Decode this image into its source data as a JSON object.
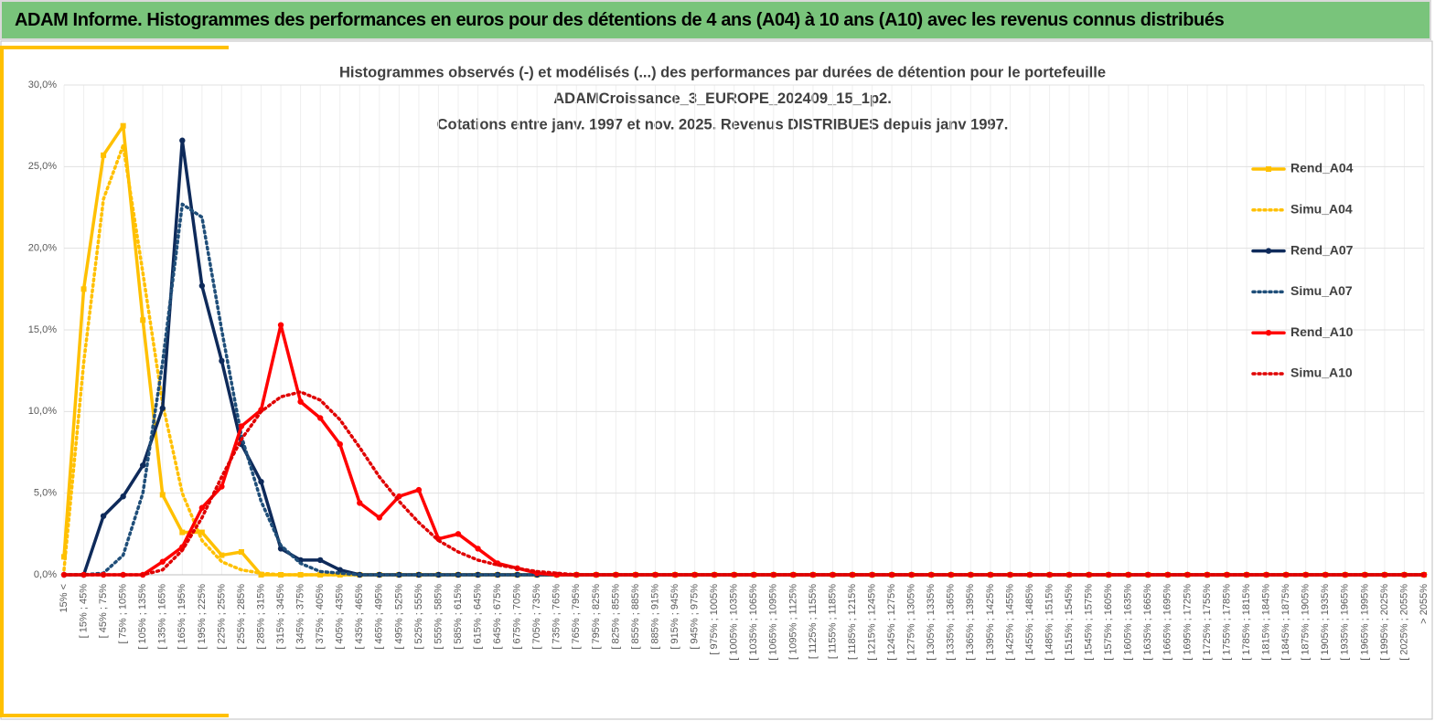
{
  "header": {
    "title": "ADAM Informe. Histogrammes des performances en euros pour des détentions de 4 ans (A04) à 10 ans (A10) avec les revenus connus distribués"
  },
  "chart_data": {
    "type": "line",
    "title": [
      "Histogrammes observés (-) et modélisés (...) des performances  par durées de détention pour le portefeuille",
      "ADAMCroissance_3_EUROPE_202409_15_1p2.",
      "Cotations entre janv. 1997 et nov. 2025. Revenus DISTRIBUES depuis janv 1997."
    ],
    "categories": [
      "15% <",
      "[ 15% ; 45%",
      "[ 45% ; 75%",
      "[ 75% ; 105%",
      "[ 105% ; 135%",
      "[ 135% ; 165%",
      "[ 165% ; 195%",
      "[ 195% ; 225%",
      "[ 225% ; 255%",
      "[ 255% ; 285%",
      "[ 285% ; 315%",
      "[ 315% ; 345%",
      "[ 345% ; 375%",
      "[ 375% ; 405%",
      "[ 405% ; 435%",
      "[ 435% ; 465%",
      "[ 465% ; 495%",
      "[ 495% ; 525%",
      "[ 525% ; 555%",
      "[ 555% ; 585%",
      "[ 585% ; 615%",
      "[ 615% ; 645%",
      "[ 645% ; 675%",
      "[ 675% ; 705%",
      "[ 705% ; 735%",
      "[ 735% ; 765%",
      "[ 765% ; 795%",
      "[ 795% ; 825%",
      "[ 825% ; 855%",
      "[ 855% ; 885%",
      "[ 885% ; 915%",
      "[ 915% ; 945%",
      "[ 945% ; 975%",
      "[ 975% ; 1005%",
      "[ 1005% ; 1035%",
      "[ 1035% ; 1065%",
      "[ 1065% ; 1095%",
      "[ 1095% ; 1125%",
      "[ 1125% ; 1155%",
      "[ 1155% ; 1185%",
      "[ 1185% ; 1215%",
      "[ 1215% ; 1245%",
      "[ 1245% ; 1275%",
      "[ 1275% ; 1305%",
      "[ 1305% ; 1335%",
      "[ 1335% ; 1365%",
      "[ 1365% ; 1395%",
      "[ 1395% ; 1425%",
      "[ 1425% ; 1455%",
      "[ 1455% ; 1485%",
      "[ 1485% ; 1515%",
      "[ 1515% ; 1545%",
      "[ 1545% ; 1575%",
      "[ 1575% ; 1605%",
      "[ 1605% ; 1635%",
      "[ 1635% ; 1665%",
      "[ 1665% ; 1695%",
      "[ 1695% ; 1725%",
      "[ 1725% ; 1755%",
      "[ 1755% ; 1785%",
      "[ 1785% ; 1815%",
      "[ 1815% ; 1845%",
      "[ 1845% ; 1875%",
      "[ 1875% ; 1905%",
      "[ 1905% ; 1935%",
      "[ 1935% ; 1965%",
      "[ 1965% ; 1995%",
      "[ 1995% ; 2025%",
      "[ 2025% ; 2055%",
      "> 2055%"
    ],
    "series": [
      {
        "name": "Rend_A04",
        "color": "#ffc000",
        "line_style": "solid",
        "marker": "square",
        "values": [
          1.1,
          17.5,
          25.7,
          27.5,
          15.6,
          4.9,
          2.6,
          2.6,
          1.2,
          1.4,
          0,
          0,
          0,
          0,
          0,
          0,
          0,
          0,
          0,
          0,
          0,
          0,
          0,
          0,
          0,
          0,
          0,
          0,
          0,
          0,
          0,
          0,
          0,
          0,
          0,
          0,
          0,
          0,
          0,
          0,
          0,
          0,
          0,
          0,
          0,
          0,
          0,
          0,
          0,
          0,
          0,
          0,
          0,
          0,
          0,
          0,
          0,
          0,
          0,
          0,
          0,
          0,
          0,
          0,
          0,
          0,
          0,
          0,
          0,
          0
        ]
      },
      {
        "name": "Simu_A04",
        "color": "#ffc000",
        "line_style": "dotted",
        "marker": "none",
        "values": [
          0.3,
          13,
          23,
          26.3,
          18.5,
          10.5,
          5,
          2.1,
          0.8,
          0.3,
          0.1,
          0,
          0,
          0,
          0,
          0,
          0,
          0,
          0,
          0,
          0,
          0,
          0,
          0,
          0,
          0,
          0,
          0,
          0,
          0,
          0,
          0,
          0,
          0,
          0,
          0,
          0,
          0,
          0,
          0,
          0,
          0,
          0,
          0,
          0,
          0,
          0,
          0,
          0,
          0,
          0,
          0,
          0,
          0,
          0,
          0,
          0,
          0,
          0,
          0,
          0,
          0,
          0,
          0,
          0,
          0,
          0,
          0,
          0,
          0
        ]
      },
      {
        "name": "Rend_A07",
        "color": "#0e2a5a",
        "line_style": "solid",
        "marker": "circle",
        "values": [
          0,
          0,
          3.6,
          4.8,
          6.7,
          10.2,
          26.6,
          17.7,
          13.1,
          8.0,
          5.7,
          1.6,
          0.9,
          0.9,
          0.3,
          0,
          0,
          0,
          0,
          0,
          0,
          0,
          0,
          0,
          0,
          0,
          0,
          0,
          0,
          0,
          0,
          0,
          0,
          0,
          0,
          0,
          0,
          0,
          0,
          0,
          0,
          0,
          0,
          0,
          0,
          0,
          0,
          0,
          0,
          0,
          0,
          0,
          0,
          0,
          0,
          0,
          0,
          0,
          0,
          0,
          0,
          0,
          0,
          0,
          0,
          0,
          0,
          0,
          0,
          0
        ]
      },
      {
        "name": "Simu_A07",
        "color": "#1f4e79",
        "line_style": "dotted",
        "marker": "none",
        "values": [
          0,
          0,
          0.1,
          1.2,
          5,
          13,
          22.7,
          21.9,
          15,
          8.5,
          4.5,
          1.8,
          0.7,
          0.2,
          0.1,
          0,
          0,
          0,
          0,
          0,
          0,
          0,
          0,
          0,
          0,
          0,
          0,
          0,
          0,
          0,
          0,
          0,
          0,
          0,
          0,
          0,
          0,
          0,
          0,
          0,
          0,
          0,
          0,
          0,
          0,
          0,
          0,
          0,
          0,
          0,
          0,
          0,
          0,
          0,
          0,
          0,
          0,
          0,
          0,
          0,
          0,
          0,
          0,
          0,
          0,
          0,
          0,
          0,
          0,
          0
        ]
      },
      {
        "name": "Rend_A10",
        "color": "#ff0000",
        "line_style": "solid",
        "marker": "circle",
        "values": [
          0,
          0,
          0,
          0,
          0,
          0.8,
          1.7,
          4.1,
          5.4,
          9.1,
          10.1,
          15.3,
          10.6,
          9.6,
          8.0,
          4.4,
          3.5,
          4.8,
          5.2,
          2.2,
          2.5,
          1.6,
          0.7,
          0.4,
          0.1,
          0,
          0,
          0,
          0,
          0,
          0,
          0,
          0,
          0,
          0,
          0,
          0,
          0,
          0,
          0,
          0,
          0,
          0,
          0,
          0,
          0,
          0,
          0,
          0,
          0,
          0,
          0,
          0,
          0,
          0,
          0,
          0,
          0,
          0,
          0,
          0,
          0,
          0,
          0,
          0,
          0,
          0,
          0,
          0,
          0
        ]
      },
      {
        "name": "Simu_A10",
        "color": "#e00000",
        "line_style": "dotted",
        "marker": "none",
        "values": [
          0,
          0,
          0,
          0,
          0,
          0.3,
          1.5,
          3.5,
          6,
          8.3,
          10,
          10.9,
          11.2,
          10.7,
          9.5,
          7.8,
          6,
          4.5,
          3.2,
          2.1,
          1.4,
          0.9,
          0.6,
          0.4,
          0.2,
          0.1,
          0,
          0,
          0,
          0,
          0,
          0,
          0,
          0,
          0,
          0,
          0,
          0,
          0,
          0,
          0,
          0,
          0,
          0,
          0,
          0,
          0,
          0,
          0,
          0,
          0,
          0,
          0,
          0,
          0,
          0,
          0,
          0,
          0,
          0,
          0,
          0,
          0,
          0,
          0,
          0,
          0,
          0,
          0,
          0
        ]
      }
    ],
    "ylim": [
      0,
      30
    ],
    "yticks": [
      {
        "value": 0,
        "label": "0,0%"
      },
      {
        "value": 5,
        "label": "5,0%"
      },
      {
        "value": 10,
        "label": "10,0%"
      },
      {
        "value": 15,
        "label": "15,0%"
      },
      {
        "value": 20,
        "label": "20,0%"
      },
      {
        "value": 25,
        "label": "25,0%"
      },
      {
        "value": 30,
        "label": "30,0%"
      }
    ],
    "grid": true,
    "legend": "right"
  }
}
